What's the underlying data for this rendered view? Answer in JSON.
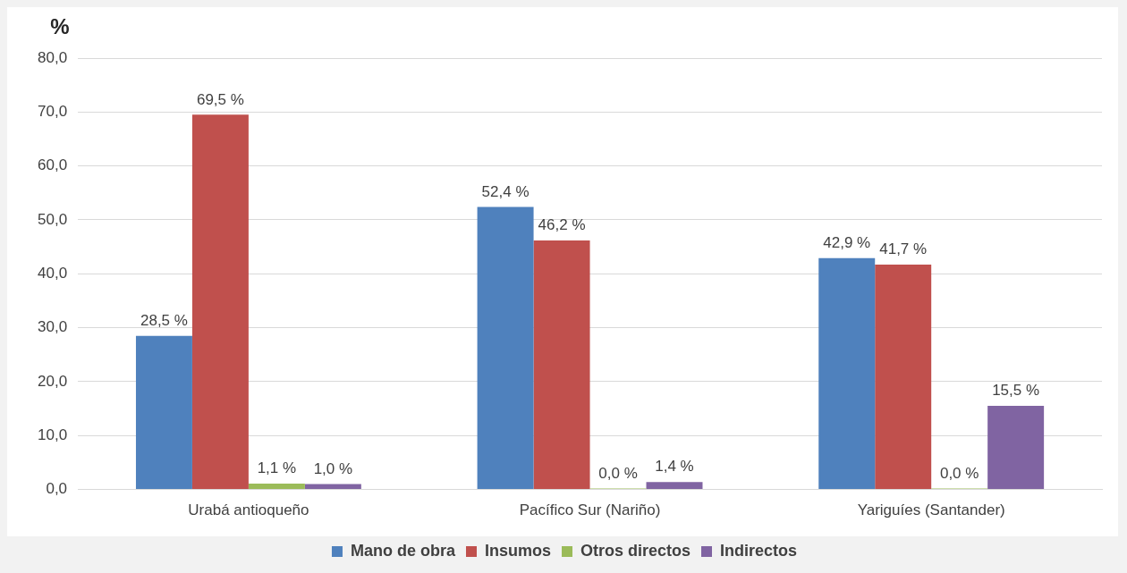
{
  "chart_data": {
    "type": "bar",
    "ylabel": "%",
    "categories": [
      "Urabá antioqueño",
      "Pacífico Sur (Nariño)",
      "Yariguíes (Santander)"
    ],
    "series": [
      {
        "name": "Mano de obra",
        "color": "#4f81bd",
        "values": [
          28.5,
          52.4,
          42.9
        ],
        "value_labels": [
          "28,5 %",
          "52,4 %",
          "42,9 %"
        ]
      },
      {
        "name": "Insumos",
        "color": "#c0504d",
        "values": [
          69.5,
          46.2,
          41.7
        ],
        "value_labels": [
          "69,5 %",
          "46,2 %",
          "41,7 %"
        ]
      },
      {
        "name": "Otros directos",
        "color": "#9bbb59",
        "values": [
          1.1,
          0.0,
          0.0
        ],
        "value_labels": [
          "1,1 %",
          "0,0 %",
          "0,0 %"
        ]
      },
      {
        "name": "Indirectos",
        "color": "#8064a2",
        "values": [
          1.0,
          1.4,
          15.5
        ],
        "value_labels": [
          "1,0 %",
          "1,4 %",
          "15,5 %"
        ]
      }
    ],
    "ylim": [
      0,
      80
    ],
    "yticks": [
      {
        "value": 0,
        "label": "0,0"
      },
      {
        "value": 10,
        "label": "10,0"
      },
      {
        "value": 20,
        "label": "20,0"
      },
      {
        "value": 30,
        "label": "30,0"
      },
      {
        "value": 40,
        "label": "40,0"
      },
      {
        "value": 50,
        "label": "50,0"
      },
      {
        "value": 60,
        "label": "60,0"
      },
      {
        "value": 70,
        "label": "70,0"
      },
      {
        "value": 80,
        "label": "80,0"
      }
    ],
    "grid": "y",
    "legend": "bottom"
  }
}
